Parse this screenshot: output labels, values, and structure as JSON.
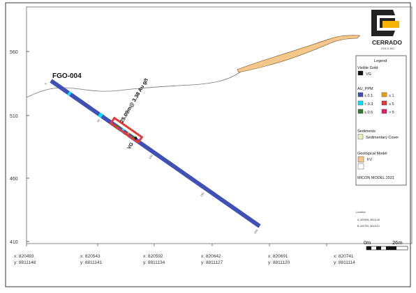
{
  "drillhole": {
    "name": "FGO-004",
    "intercept": "25.09m@ 3.38 Au g/t",
    "vg_tag": "VG",
    "depth_labels": [
      "0",
      "50",
      "100",
      "150",
      "200"
    ]
  },
  "yaxis": {
    "ticks": [
      "560",
      "510",
      "460",
      "410"
    ]
  },
  "xaxis": {
    "ticks": [
      {
        "x": "x: 820493",
        "y": "y: 8811148"
      },
      {
        "x": "x: 820543",
        "y": "y: 8811141"
      },
      {
        "x": "x: 820592",
        "y": "y: 8811134"
      },
      {
        "x": "x: 820642",
        "y": "y: 8811127"
      },
      {
        "x": "x: 820691",
        "y": "y: 8811120"
      },
      {
        "x": "x: 820741",
        "y": "y: 8811114"
      }
    ]
  },
  "logo": {
    "name": "CERRADO",
    "sub": "GOLD INC"
  },
  "legend": {
    "title": "Legend",
    "visible_gold": {
      "title": "Visible Gold",
      "label": "VG",
      "color": "#111111"
    },
    "au_ppm": {
      "title": "AU_PPM",
      "items": [
        {
          "label": "≤ 0.1",
          "color": "#3f51b5"
        },
        {
          "label": "≤ 1",
          "color": "#ff9800"
        },
        {
          "label": "< 0.3",
          "color": "#00e5ff"
        },
        {
          "label": "≤ 5",
          "color": "#e53935"
        },
        {
          "label": "≤ 0.5",
          "color": "#2e7d32"
        },
        {
          "label": "> 5",
          "color": "#e91e63"
        }
      ]
    },
    "sediments": {
      "title": "Sediments",
      "label": "Sedimentary Cover",
      "color": "#e6f4c1"
    },
    "geo_model": {
      "title": "Geological Model",
      "label": "FV",
      "color": "#f5c78a"
    },
    "model_note": "MICON MODEL 2021"
  },
  "location": {
    "title": "Location",
    "lines": [
      "A:  820496, 8811148",
      "B:  820752, 8811113"
    ]
  },
  "scale": {
    "left": "0m",
    "right": "26m"
  }
}
